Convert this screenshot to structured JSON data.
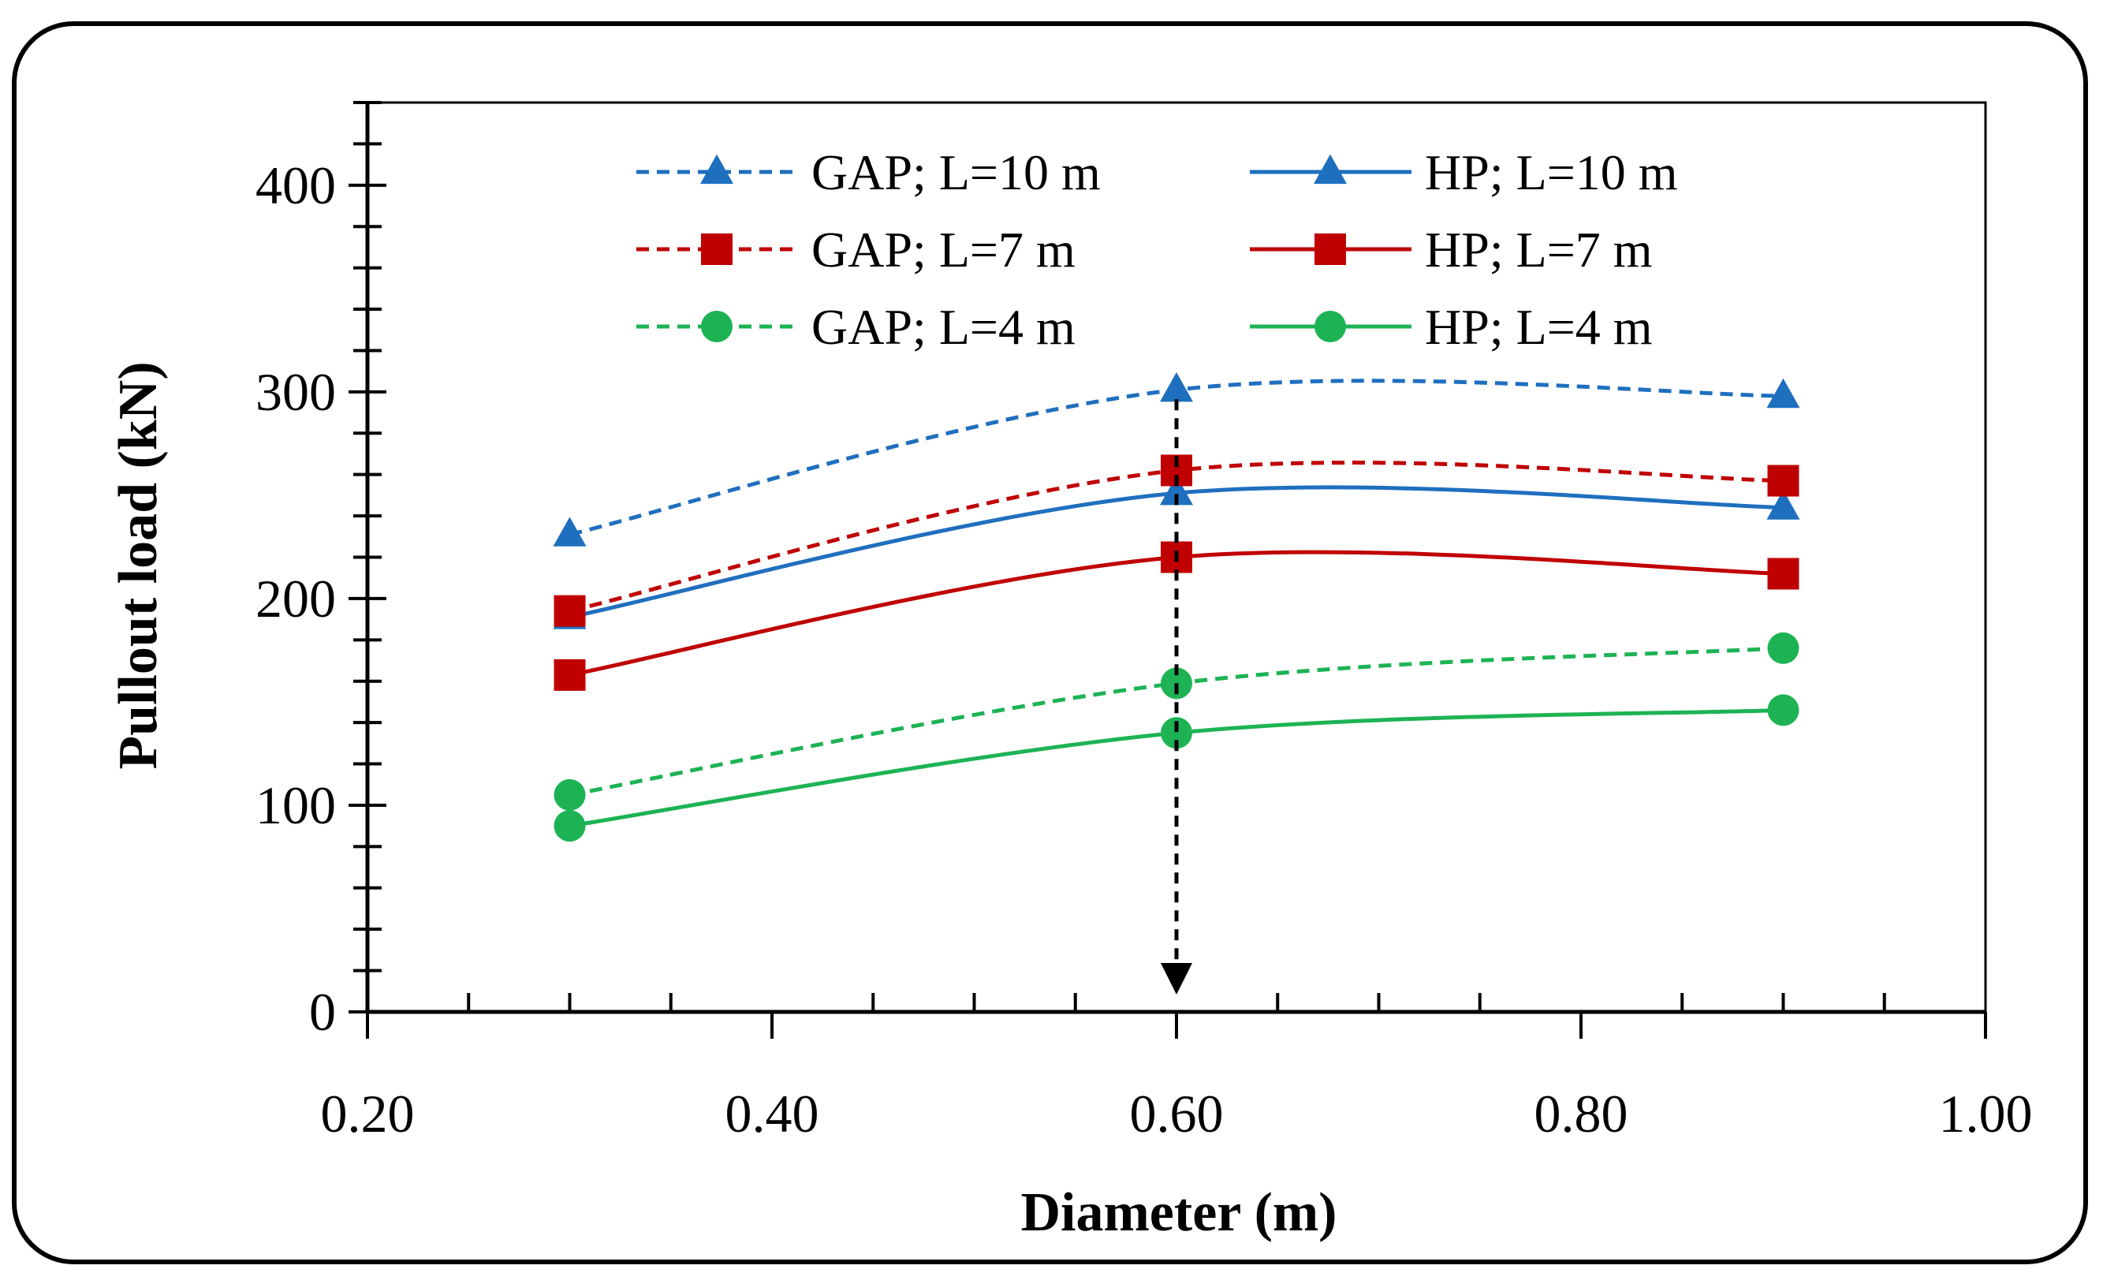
{
  "chart_data": {
    "type": "line",
    "xlabel": "Diameter (m)",
    "ylabel": "Pullout load (kN)",
    "xlim": [
      0.2,
      1.0
    ],
    "ylim": [
      0,
      440
    ],
    "x_ticks": [
      "0.20",
      "0.40",
      "0.60",
      "0.80",
      "1.00"
    ],
    "y_ticks": [
      "0",
      "100",
      "200",
      "300",
      "400"
    ],
    "x": [
      0.3,
      0.6,
      0.9
    ],
    "series": [
      {
        "name": "GAP; L=10 m",
        "values": [
          231,
          301,
          298
        ],
        "color": "#1f6fbf",
        "dash": true,
        "marker": "triangle"
      },
      {
        "name": "HP; L=10 m",
        "values": [
          191,
          251,
          244
        ],
        "color": "#1f6fbf",
        "dash": false,
        "marker": "triangle"
      },
      {
        "name": "GAP; L=7 m",
        "values": [
          194,
          262,
          257
        ],
        "color": "#c00000",
        "dash": true,
        "marker": "square"
      },
      {
        "name": "HP; L=7 m",
        "values": [
          163,
          220,
          212
        ],
        "color": "#c00000",
        "dash": false,
        "marker": "square"
      },
      {
        "name": "GAP; L=4 m",
        "values": [
          105,
          159,
          176
        ],
        "color": "#1db354",
        "dash": true,
        "marker": "circle"
      },
      {
        "name": "HP; L=4 m",
        "values": [
          90,
          135,
          146
        ],
        "color": "#1db354",
        "dash": false,
        "marker": "circle"
      }
    ],
    "annotation": {
      "type": "arrow",
      "x": 0.6,
      "y_from": 301,
      "y_to": 0
    }
  }
}
